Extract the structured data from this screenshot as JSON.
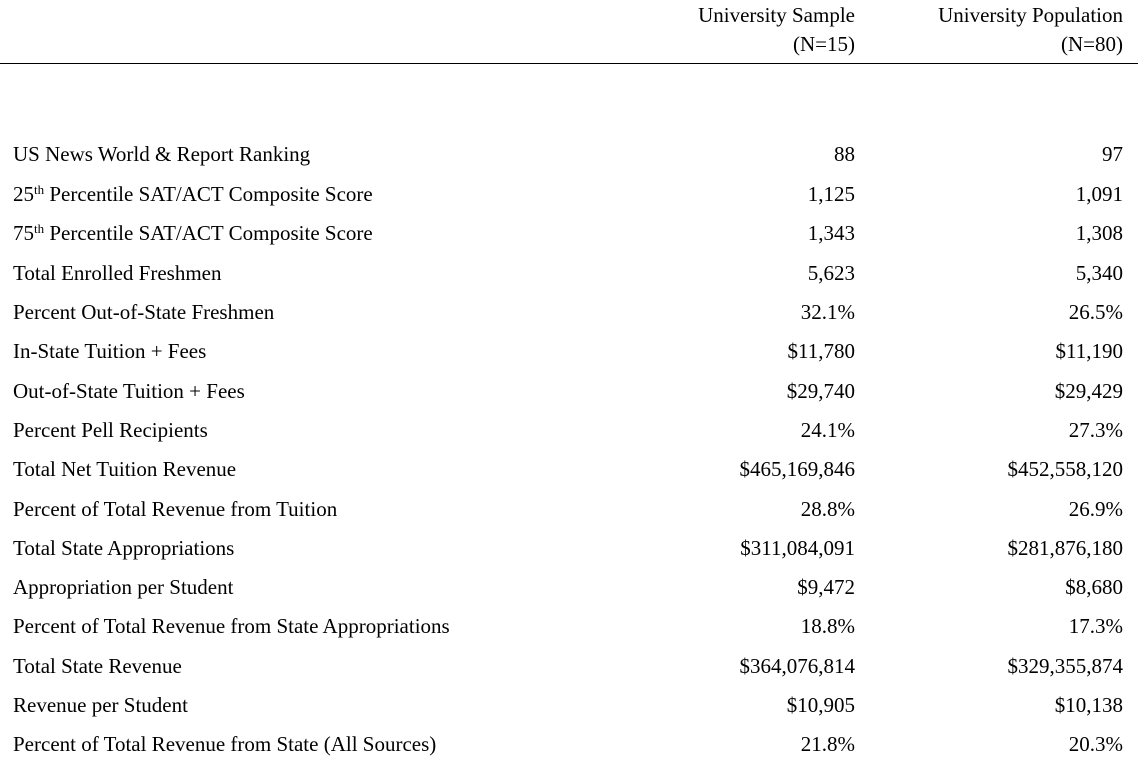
{
  "columns": {
    "sample_line1": "University Sample",
    "sample_line2": "(N=15)",
    "population_line1": "University Population",
    "population_line2": "(N=80)"
  },
  "rows": [
    {
      "label": "US News World & Report Ranking",
      "sample": "88",
      "population": "97"
    },
    {
      "label_prefix": "25",
      "label_sup": "th",
      "label": " Percentile SAT/ACT Composite Score",
      "sample": "1,125",
      "population": "1,091"
    },
    {
      "label_prefix": "75",
      "label_sup": "th",
      "label": " Percentile SAT/ACT Composite Score",
      "sample": "1,343",
      "population": "1,308"
    },
    {
      "label": "Total Enrolled Freshmen",
      "sample": "5,623",
      "population": "5,340"
    },
    {
      "label": "Percent Out-of-State Freshmen",
      "sample": "32.1%",
      "population": "26.5%"
    },
    {
      "label": "In-State Tuition + Fees",
      "sample": "$11,780",
      "population": "$11,190"
    },
    {
      "label": "Out-of-State Tuition + Fees",
      "sample": "$29,740",
      "population": "$29,429"
    },
    {
      "label": "Percent Pell Recipients",
      "sample": "24.1%",
      "population": "27.3%"
    },
    {
      "label": "Total Net Tuition Revenue",
      "sample": "$465,169,846",
      "population": "$452,558,120"
    },
    {
      "label": "Percent of Total Revenue from Tuition",
      "sample": "28.8%",
      "population": "26.9%"
    },
    {
      "label": "Total State Appropriations",
      "sample": "$311,084,091",
      "population": "$281,876,180"
    },
    {
      "label": "Appropriation per Student",
      "sample": "$9,472",
      "population": "$8,680"
    },
    {
      "label": "Percent of Total Revenue from State Appropriations",
      "sample": "18.8%",
      "population": "17.3%"
    },
    {
      "label": "Total State Revenue",
      "sample": "$364,076,814",
      "population": "$329,355,874"
    },
    {
      "label": "Revenue per Student",
      "sample": "$10,905",
      "population": "$10,138"
    },
    {
      "label": "Percent of Total Revenue from State (All Sources)",
      "sample": "21.8%",
      "population": "20.3%"
    }
  ]
}
